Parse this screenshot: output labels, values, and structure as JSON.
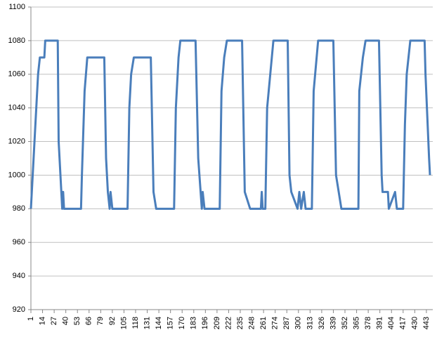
{
  "chart_data": {
    "type": "line",
    "x": [
      1,
      5,
      9,
      11,
      16,
      17,
      31,
      32,
      35,
      36,
      37,
      38,
      57,
      58,
      61,
      64,
      83,
      85,
      87,
      89,
      90,
      92,
      109,
      111,
      113,
      116,
      135,
      138,
      141,
      161,
      163,
      166,
      168,
      185,
      188,
      192,
      193,
      195,
      212,
      214,
      217,
      220,
      237,
      240,
      246,
      258,
      259,
      260,
      263,
      265,
      272,
      288,
      290,
      292,
      299,
      301,
      303,
      306,
      308,
      315,
      317,
      322,
      339,
      342,
      345,
      348,
      367,
      368,
      372,
      375,
      390,
      393,
      394,
      400,
      401,
      408,
      410,
      417,
      419,
      421,
      425,
      441,
      442,
      446,
      447
    ],
    "values": [
      980,
      1020,
      1060,
      1070,
      1070,
      1080,
      1080,
      1020,
      990,
      980,
      990,
      980,
      980,
      1000,
      1050,
      1070,
      1070,
      1010,
      990,
      980,
      990,
      980,
      980,
      1040,
      1060,
      1070,
      1070,
      990,
      980,
      980,
      1040,
      1070,
      1080,
      1080,
      1010,
      980,
      990,
      980,
      980,
      1050,
      1070,
      1080,
      1080,
      990,
      980,
      980,
      990,
      980,
      980,
      1040,
      1080,
      1080,
      1000,
      990,
      980,
      990,
      980,
      990,
      980,
      980,
      1050,
      1080,
      1080,
      1000,
      990,
      980,
      980,
      1050,
      1070,
      1080,
      1080,
      1000,
      990,
      990,
      980,
      990,
      980,
      980,
      1030,
      1060,
      1080,
      1080,
      1060,
      1010,
      1000
    ],
    "color": "#4a7ebb",
    "xlim": [
      1,
      447
    ],
    "xticks": [
      1,
      14,
      27,
      40,
      53,
      66,
      79,
      92,
      105,
      118,
      131,
      144,
      157,
      170,
      183,
      196,
      209,
      222,
      235,
      248,
      261,
      274,
      287,
      300,
      313,
      326,
      339,
      352,
      365,
      378,
      391,
      404,
      417,
      430,
      443
    ],
    "ylim": [
      920,
      1100
    ],
    "yticks": [
      920,
      940,
      960,
      980,
      1000,
      1020,
      1040,
      1060,
      1080,
      1100
    ],
    "grid": true
  }
}
